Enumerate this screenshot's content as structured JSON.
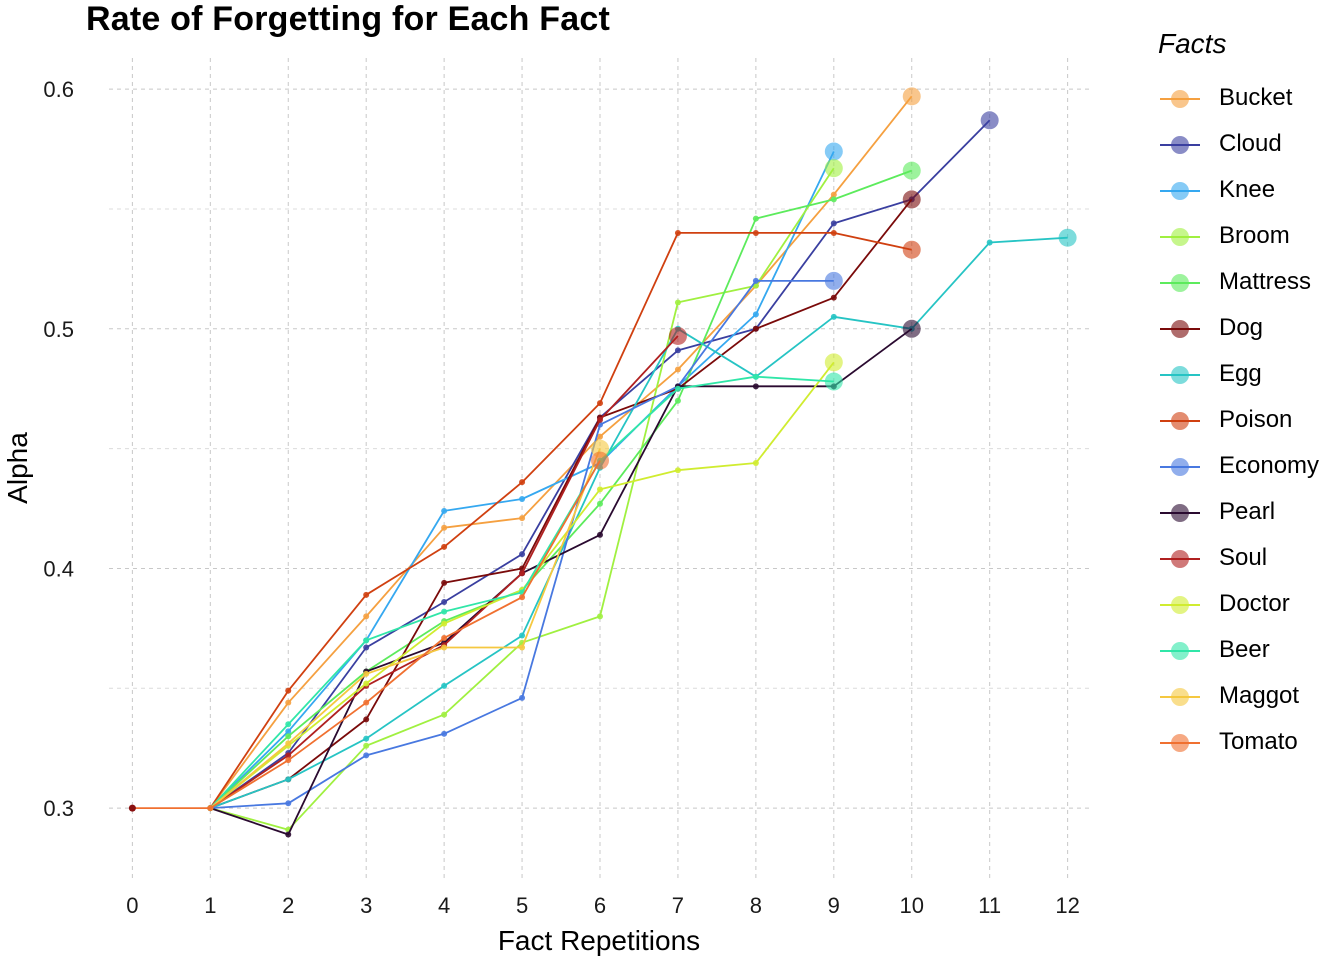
{
  "chart_data": {
    "type": "line",
    "title": "Rate of Forgetting for Each Fact",
    "xlabel": "Fact Repetitions",
    "ylabel": "Alpha",
    "legend_title": "Facts",
    "legend_position": "right",
    "grid": true,
    "xlim": [
      -0.3,
      12.3
    ],
    "ylim": [
      0.27,
      0.613
    ],
    "x_ticks": [
      0,
      1,
      2,
      3,
      4,
      5,
      6,
      7,
      8,
      9,
      10,
      11,
      12
    ],
    "y_ticks": [
      0.3,
      0.4,
      0.5,
      0.6
    ],
    "y_tick_labels": [
      "0.3",
      "0.4",
      "0.5",
      "0.6"
    ],
    "series": [
      {
        "name": "Bucket",
        "color": "#F5A040",
        "x": [
          1,
          2,
          3,
          4,
          5,
          6,
          7,
          8,
          9,
          10
        ],
        "y": [
          0.3,
          0.344,
          0.38,
          0.417,
          0.421,
          0.455,
          0.483,
          0.518,
          0.556,
          0.597
        ]
      },
      {
        "name": "Cloud",
        "color": "#3A3FA0",
        "x": [
          1,
          2,
          3,
          4,
          5,
          6,
          7,
          8,
          9,
          10,
          11
        ],
        "y": [
          0.3,
          0.323,
          0.367,
          0.386,
          0.406,
          0.463,
          0.491,
          0.5,
          0.544,
          0.554,
          0.587
        ]
      },
      {
        "name": "Knee",
        "color": "#35A8F0",
        "x": [
          1,
          2,
          3,
          4,
          5,
          6,
          7,
          8,
          9
        ],
        "y": [
          0.3,
          0.332,
          0.37,
          0.424,
          0.429,
          0.444,
          0.476,
          0.506,
          0.574
        ]
      },
      {
        "name": "Broom",
        "color": "#A0F040",
        "x": [
          1,
          2,
          3,
          4,
          5,
          6,
          7,
          8,
          9
        ],
        "y": [
          0.3,
          0.291,
          0.326,
          0.339,
          0.369,
          0.38,
          0.511,
          0.518,
          0.567
        ]
      },
      {
        "name": "Mattress",
        "color": "#5CEB5C",
        "x": [
          1,
          2,
          3,
          4,
          5,
          6,
          7,
          8,
          9,
          10
        ],
        "y": [
          0.3,
          0.33,
          0.357,
          0.378,
          0.391,
          0.427,
          0.47,
          0.546,
          0.554,
          0.566
        ]
      },
      {
        "name": "Dog",
        "color": "#7A0A0A",
        "x": [
          1,
          2,
          3,
          4,
          5,
          6,
          7,
          8,
          9,
          10
        ],
        "y": [
          0.3,
          0.312,
          0.337,
          0.394,
          0.4,
          0.463,
          0.475,
          0.5,
          0.513,
          0.554
        ]
      },
      {
        "name": "Egg",
        "color": "#26C4C4",
        "x": [
          1,
          2,
          3,
          4,
          5,
          6,
          7,
          8,
          9,
          10,
          11,
          12
        ],
        "y": [
          0.3,
          0.312,
          0.329,
          0.351,
          0.372,
          0.442,
          0.5,
          0.48,
          0.505,
          0.5,
          0.536,
          0.538
        ]
      },
      {
        "name": "Poison",
        "color": "#D04010",
        "x": [
          1,
          2,
          3,
          4,
          5,
          6,
          7,
          8,
          9,
          10
        ],
        "y": [
          0.3,
          0.349,
          0.389,
          0.409,
          0.436,
          0.469,
          0.54,
          0.54,
          0.54,
          0.533
        ]
      },
      {
        "name": "Economy",
        "color": "#4878E0",
        "x": [
          1,
          2,
          3,
          4,
          5,
          6,
          7,
          8,
          9
        ],
        "y": [
          0.3,
          0.302,
          0.322,
          0.331,
          0.346,
          0.46,
          0.476,
          0.52,
          0.52
        ]
      },
      {
        "name": "Pearl",
        "color": "#2A0A30",
        "x": [
          1,
          2,
          3,
          4,
          5,
          6,
          7,
          8,
          9,
          10
        ],
        "y": [
          0.3,
          0.289,
          0.357,
          0.369,
          0.398,
          0.414,
          0.476,
          0.476,
          0.476,
          0.5
        ]
      },
      {
        "name": "Soul",
        "color": "#B02020",
        "x": [
          1,
          2,
          3,
          4,
          5,
          6,
          7
        ],
        "y": [
          0.3,
          0.322,
          0.351,
          0.368,
          0.398,
          0.462,
          0.497
        ]
      },
      {
        "name": "Doctor",
        "color": "#D0EC30",
        "x": [
          1,
          2,
          3,
          4,
          5,
          6,
          7,
          8,
          9
        ],
        "y": [
          0.3,
          0.326,
          0.352,
          0.377,
          0.391,
          0.433,
          0.441,
          0.444,
          0.486
        ]
      },
      {
        "name": "Beer",
        "color": "#30E6A8",
        "x": [
          1,
          2,
          3,
          4,
          5,
          6,
          7,
          8,
          9
        ],
        "y": [
          0.3,
          0.335,
          0.37,
          0.382,
          0.39,
          0.445,
          0.475,
          0.48,
          0.478
        ]
      },
      {
        "name": "Maggot",
        "color": "#F5C840",
        "x": [
          1,
          2,
          3,
          4,
          5,
          6
        ],
        "y": [
          0.3,
          0.327,
          0.356,
          0.367,
          0.367,
          0.45
        ]
      },
      {
        "name": "Tomato",
        "color": "#F07030",
        "x": [
          0,
          1,
          2,
          3,
          4,
          5,
          6
        ],
        "y": [
          0.3,
          0.3,
          0.32,
          0.344,
          0.371,
          0.388,
          0.445
        ]
      }
    ]
  }
}
